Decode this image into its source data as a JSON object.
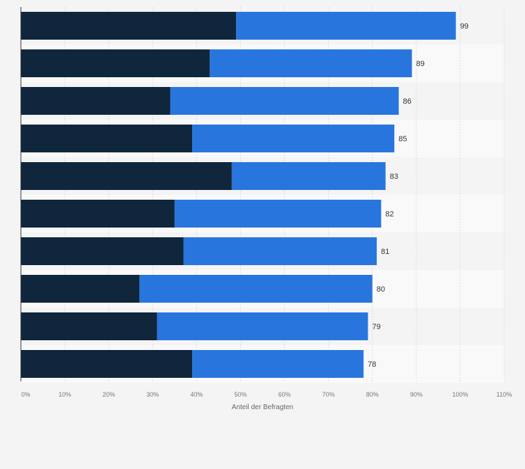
{
  "chart_data": {
    "type": "bar",
    "orientation": "horizontal",
    "stacked": true,
    "categories": [
      "",
      "",
      "",
      "",
      "",
      "",
      "",
      "",
      "",
      ""
    ],
    "series": [
      {
        "values": [
          49,
          43,
          34,
          39,
          48,
          35,
          37,
          27,
          31,
          39
        ],
        "color": "#10263d"
      },
      {
        "values": [
          50,
          46,
          52,
          46,
          35,
          47,
          44,
          53,
          48,
          39
        ],
        "color": "#2876dd"
      }
    ],
    "totals": [
      "99",
      "89",
      "86",
      "85",
      "83",
      "82",
      "81",
      "80",
      "79",
      "78"
    ],
    "xlabel": "Anteil der Befragten",
    "xlim": [
      0,
      110
    ],
    "xticks": [
      "0%",
      "10%",
      "20%",
      "30%",
      "40%",
      "50%",
      "60%",
      "70%",
      "80%",
      "90%",
      "100%",
      "110%"
    ],
    "grid": true,
    "legend": "none"
  }
}
